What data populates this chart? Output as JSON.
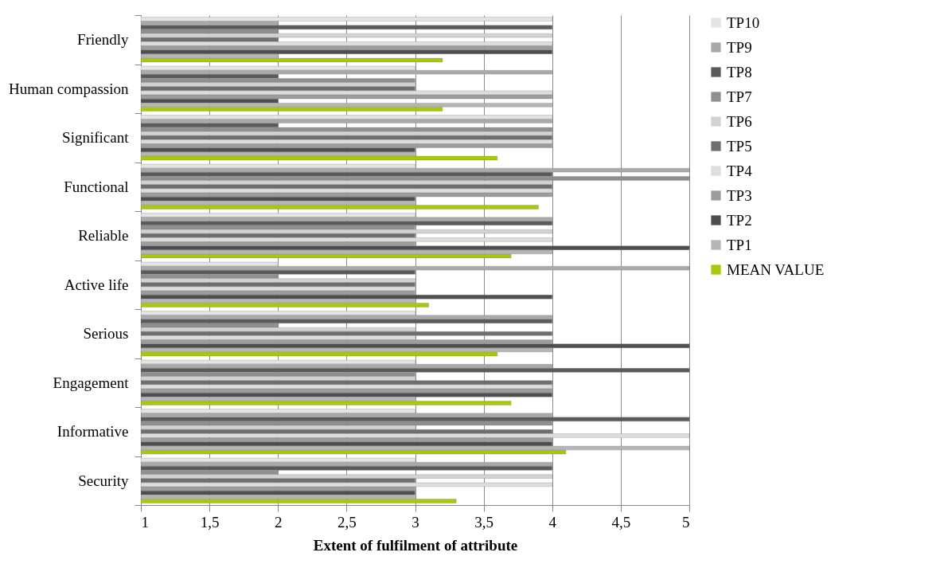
{
  "chart_data": {
    "type": "bar",
    "orientation": "horizontal",
    "xlabel": "Extent of fulfilment of attribute",
    "categories": [
      "Friendly",
      "Human compassion",
      "Significant",
      "Functional",
      "Reliable",
      "Active life",
      "Serious",
      "Engagement",
      "Informative",
      "Security"
    ],
    "series": [
      {
        "name": "TP10",
        "color": "#e4e4e4",
        "values": [
          4,
          3,
          4,
          3,
          3,
          2,
          3,
          3,
          3,
          3
        ]
      },
      {
        "name": "TP9",
        "color": "#a9a9a9",
        "values": [
          2,
          4,
          4,
          5,
          4,
          5,
          4,
          4,
          4,
          4
        ]
      },
      {
        "name": "TP8",
        "color": "#5a5a5a",
        "values": [
          4,
          2,
          2,
          4,
          4,
          3,
          4,
          5,
          5,
          4
        ]
      },
      {
        "name": "TP7",
        "color": "#8f8f8f",
        "values": [
          2,
          3,
          4,
          5,
          3,
          2,
          2,
          3,
          4,
          2
        ]
      },
      {
        "name": "TP6",
        "color": "#d2d2d2",
        "values": [
          4,
          3,
          4,
          4,
          4,
          3,
          3,
          3,
          3,
          4
        ]
      },
      {
        "name": "TP5",
        "color": "#6e6e6e",
        "values": [
          2,
          3,
          4,
          4,
          3,
          3,
          4,
          4,
          4,
          3
        ]
      },
      {
        "name": "TP4",
        "color": "#dddddd",
        "values": [
          4,
          4,
          4,
          4,
          4,
          3,
          3,
          4,
          5,
          4
        ]
      },
      {
        "name": "TP3",
        "color": "#9c9c9c",
        "values": [
          4,
          4,
          4,
          4,
          3,
          3,
          4,
          4,
          4,
          3
        ]
      },
      {
        "name": "TP2",
        "color": "#4e4e4e",
        "values": [
          4,
          2,
          3,
          3,
          5,
          4,
          5,
          4,
          4,
          3
        ]
      },
      {
        "name": "TP1",
        "color": "#b5b5b5",
        "values": [
          2,
          4,
          3,
          3,
          4,
          3,
          4,
          3,
          5,
          3
        ]
      },
      {
        "name": "MEAN VALUE",
        "color": "#a8c80a",
        "values": [
          3.2,
          3.2,
          3.6,
          3.9,
          3.7,
          3.1,
          3.6,
          3.7,
          4.1,
          3.3
        ]
      }
    ],
    "xlim": [
      1,
      5
    ],
    "xticks": [
      1,
      {
        "value": 1.5,
        "label": "1,5"
      },
      2,
      {
        "value": 2.5,
        "label": "2,5"
      },
      3,
      {
        "value": 3.5,
        "label": "3,5"
      },
      4,
      {
        "value": 4.5,
        "label": "4,5"
      },
      5
    ],
    "grid": "x",
    "legend": "right"
  }
}
